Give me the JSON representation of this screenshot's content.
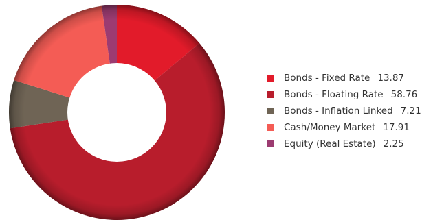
{
  "chart_data": {
    "type": "pie",
    "variant": "donut",
    "start_angle_deg": 0,
    "direction": "clockwise",
    "legend_position": "right",
    "categories": [
      "Bonds - Fixed Rate",
      "Bonds - Floating Rate",
      "Bonds - Inflation Linked",
      "Cash/Money Market",
      "Equity (Real Estate)"
    ],
    "values": [
      13.87,
      58.76,
      7.21,
      17.91,
      2.25
    ],
    "value_labels": [
      "13.87",
      "58.76",
      "7.21",
      "17.91",
      "2.25"
    ],
    "colors": [
      "#e21b2a",
      "#b81d2c",
      "#6f6455",
      "#f45c55",
      "#9c3b71"
    ]
  }
}
